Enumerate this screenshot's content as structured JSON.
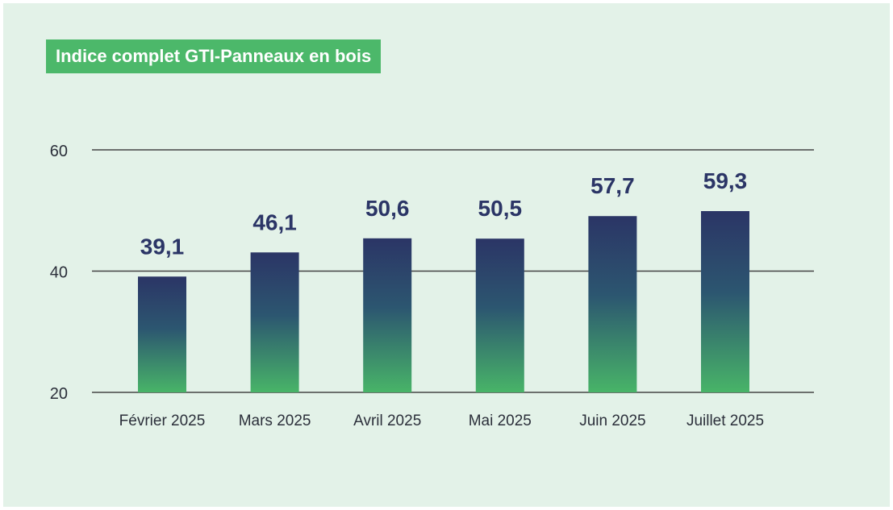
{
  "chart_data": {
    "type": "bar",
    "title": "Indice complet GTI-Panneaux en bois",
    "categories": [
      "Février 2025",
      "Mars 2025",
      "Avril 2025",
      "Mai 2025",
      "Juin 2025",
      "Juillet 2025"
    ],
    "values": [
      39.1,
      46.1,
      50.6,
      50.5,
      57.7,
      59.3
    ],
    "value_labels": [
      "39,1",
      "46,1",
      "50,6",
      "50,5",
      "57,7",
      "59,3"
    ],
    "y_ticks": [
      "20",
      "40",
      "60"
    ],
    "ylim": [
      20,
      60
    ],
    "grid": true,
    "colors": {
      "bar_top": "#2b3566",
      "bar_mid": "#2e5e6e",
      "bar_bottom": "#48b468",
      "title_bg": "#4cb86a",
      "gridline": "#444444",
      "value_text": "#2b3566"
    }
  }
}
